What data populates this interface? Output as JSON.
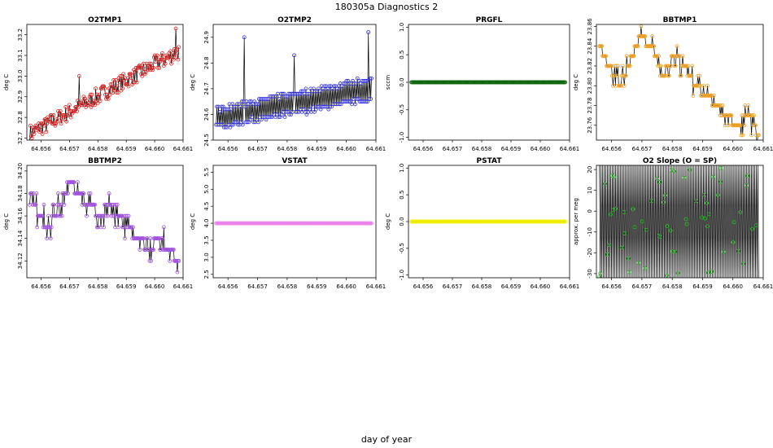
{
  "page": {
    "title": "180305a   Diagnostics 2",
    "xlabel": "day of year"
  },
  "chart_data": [
    {
      "id": "o2tmp1",
      "type": "line",
      "title": "O2TMP1",
      "ylabel": "deg C",
      "color": "#e02020",
      "gen": {
        "mode": "trend",
        "start": 32.72,
        "end": 33.12,
        "noise": 0.04,
        "spikes": [
          [
            0.33,
            33.0
          ],
          [
            0.98,
            33.23
          ]
        ],
        "step": 0.01
      },
      "xlim": [
        64.6555,
        64.661
      ],
      "ylim": [
        32.69,
        33.25
      ],
      "xticks": [
        64.656,
        64.657,
        64.658,
        64.659,
        64.66,
        64.661
      ],
      "xtick_labels": [
        "64.656",
        "64.657",
        "64.658",
        "64.659",
        "64.660",
        "64.661"
      ],
      "yticks": [
        32.7,
        32.8,
        32.9,
        33.0,
        33.1,
        33.2
      ],
      "ytick_labels": [
        "32.7",
        "32.8",
        "32.9",
        "33.0",
        "33.1",
        "33.2"
      ],
      "grid": false
    },
    {
      "id": "o2tmp2",
      "type": "line",
      "title": "O2TMP2",
      "ylabel": "deg C",
      "color": "#2a2ae0",
      "gen": {
        "mode": "twolevel",
        "low": [
          24.55,
          24.66
        ],
        "high": [
          24.62,
          24.74
        ],
        "spikes": [
          [
            0.18,
            24.9
          ],
          [
            0.5,
            24.83
          ],
          [
            0.98,
            24.92
          ]
        ],
        "step": 0.01
      },
      "xlim": [
        64.6555,
        64.661
      ],
      "ylim": [
        24.5,
        24.95
      ],
      "xticks": [
        64.656,
        64.657,
        64.658,
        64.659,
        64.66,
        64.661
      ],
      "xtick_labels": [
        "64.656",
        "64.657",
        "64.658",
        "64.659",
        "64.660",
        "64.661"
      ],
      "yticks": [
        24.5,
        24.6,
        24.7,
        24.8,
        24.9
      ],
      "ytick_labels": [
        "24.5",
        "24.6",
        "24.7",
        "24.8",
        "24.9"
      ],
      "grid": false
    },
    {
      "id": "prgfl",
      "type": "line",
      "title": "PRGFL",
      "ylabel": "sccm",
      "color": "#0a640a",
      "gen": {
        "mode": "flat",
        "value": 0
      },
      "xlim": [
        64.6555,
        64.661
      ],
      "ylim": [
        -1.05,
        1.05
      ],
      "xticks": [
        64.656,
        64.657,
        64.658,
        64.659,
        64.66,
        64.661
      ],
      "xtick_labels": [
        "64.656",
        "64.657",
        "64.658",
        "64.659",
        "64.660",
        "64.661"
      ],
      "yticks": [
        -1.0,
        -0.5,
        0.0,
        0.5,
        1.0
      ],
      "ytick_labels": [
        "-1.0",
        "-0.5",
        "0.0",
        "0.5",
        "1.0"
      ],
      "grid": false
    },
    {
      "id": "bbtmp1",
      "type": "line",
      "title": "BBTMP1",
      "ylabel": "deg C",
      "color": "#f0a020",
      "gen": {
        "mode": "steps",
        "levels": [
          23.84,
          23.82,
          23.8,
          23.83,
          23.85,
          23.84,
          23.81,
          23.83,
          23.82,
          23.8,
          23.79,
          23.78,
          23.77,
          23.76,
          23.77,
          23.75
        ],
        "jitter": 0.01,
        "step": 0.01
      },
      "xlim": [
        64.6555,
        64.661
      ],
      "ylim": [
        23.745,
        23.862
      ],
      "xticks": [
        64.656,
        64.657,
        64.658,
        64.659,
        64.66,
        64.661
      ],
      "xtick_labels": [
        "64.656",
        "64.657",
        "64.658",
        "64.659",
        "64.660",
        "64.661"
      ],
      "yticks": [
        23.76,
        23.78,
        23.8,
        23.82,
        23.84,
        23.86
      ],
      "ytick_labels": [
        "23.76",
        "23.78",
        "23.80",
        "23.82",
        "23.84",
        "23.86"
      ],
      "grid": false
    },
    {
      "id": "bbtmp2",
      "type": "line",
      "title": "BBTMP2",
      "ylabel": "deg C",
      "color": "#a050e0",
      "gen": {
        "mode": "steps",
        "levels": [
          34.18,
          34.16,
          34.15,
          34.17,
          34.19,
          34.18,
          34.17,
          34.16,
          34.17,
          34.16,
          34.15,
          34.14,
          34.13,
          34.14,
          34.13,
          34.12
        ],
        "jitter": 0.01,
        "step": 0.01
      },
      "xlim": [
        64.6555,
        64.661
      ],
      "ylim": [
        34.105,
        34.205
      ],
      "xticks": [
        64.656,
        64.657,
        64.658,
        64.659,
        64.66,
        64.661
      ],
      "xtick_labels": [
        "64.656",
        "64.657",
        "64.658",
        "64.659",
        "64.660",
        "64.661"
      ],
      "yticks": [
        34.12,
        34.14,
        34.16,
        34.18,
        34.2
      ],
      "ytick_labels": [
        "34.12",
        "34.14",
        "34.16",
        "34.18",
        "34.20"
      ],
      "grid": false
    },
    {
      "id": "vstat",
      "type": "line",
      "title": "VSTAT",
      "ylabel": "deg C",
      "color": "#ee82ee",
      "gen": {
        "mode": "flat",
        "value": 4.0
      },
      "xlim": [
        64.6555,
        64.661
      ],
      "ylim": [
        2.4,
        5.7
      ],
      "xticks": [
        64.656,
        64.657,
        64.658,
        64.659,
        64.66,
        64.661
      ],
      "xtick_labels": [
        "64.656",
        "64.657",
        "64.658",
        "64.659",
        "64.660",
        "64.661"
      ],
      "yticks": [
        2.5,
        3.0,
        3.5,
        4.0,
        4.5,
        5.0,
        5.5
      ],
      "ytick_labels": [
        "2.5",
        "3.0",
        "3.5",
        "4.0",
        "4.5",
        "5.0",
        "5.5"
      ],
      "grid": false
    },
    {
      "id": "pstat",
      "type": "line",
      "title": "PSTAT",
      "ylabel": "deg C",
      "color": "#f0f000",
      "gen": {
        "mode": "flat",
        "value": 0
      },
      "xlim": [
        64.6555,
        64.661
      ],
      "ylim": [
        -1.05,
        1.05
      ],
      "xticks": [
        64.656,
        64.657,
        64.658,
        64.659,
        64.66,
        64.661
      ],
      "xtick_labels": [
        "64.656",
        "64.657",
        "64.658",
        "64.659",
        "64.660",
        "64.661"
      ],
      "yticks": [
        -1.0,
        -0.5,
        0.0,
        0.5,
        1.0
      ],
      "ytick_labels": [
        "-1.0",
        "-0.5",
        "0.0",
        "0.5",
        "1.0"
      ],
      "grid": false
    },
    {
      "id": "o2slope",
      "type": "line",
      "title": "O2 Slope (O = SP)",
      "ylabel": "approx. per meg",
      "color": "#20c020",
      "gen": {
        "mode": "wild",
        "lo": -32,
        "hi": 22,
        "sparse": 0.35
      },
      "xlim": [
        64.6555,
        64.661
      ],
      "ylim": [
        -32,
        22
      ],
      "xticks": [
        64.656,
        64.657,
        64.658,
        64.659,
        64.66,
        64.661
      ],
      "xtick_labels": [
        "64.656",
        "64.657",
        "64.658",
        "64.659",
        "64.660",
        "64.661"
      ],
      "yticks": [
        -30,
        -20,
        -10,
        0,
        10,
        20
      ],
      "ytick_labels": [
        "-30",
        "-20",
        "-10",
        "0",
        "10",
        "20"
      ],
      "grid": false
    }
  ]
}
